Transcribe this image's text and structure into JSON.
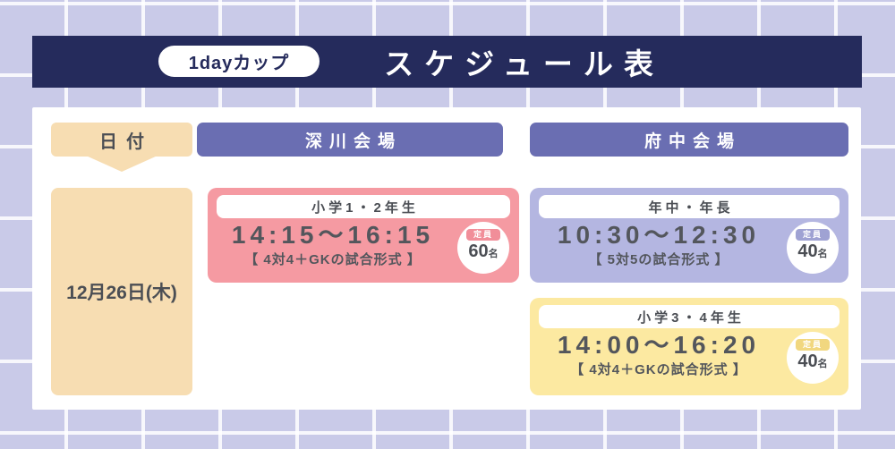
{
  "banner": {
    "badge": "1dayカップ",
    "title": "スケジュール表"
  },
  "headers": {
    "date": "日付",
    "venue1": "深川会場",
    "venue2": "府中会場"
  },
  "date": {
    "value": "12月26日(木)"
  },
  "sessions": [
    {
      "venue": "深川会場",
      "grade": "小学1・2年生",
      "time": "14:15〜16:15",
      "format": "【 4対4＋GKの試合形式 】",
      "capacity_label": "定員",
      "capacity_value": "60",
      "capacity_unit": "名",
      "color": "#f59aa2"
    },
    {
      "venue": "府中会場",
      "grade": "年中・年長",
      "time": "10:30〜12:30",
      "format": "【 5対5の試合形式 】",
      "capacity_label": "定員",
      "capacity_value": "40",
      "capacity_unit": "名",
      "color": "#b4b6e1"
    },
    {
      "venue": "府中会場",
      "grade": "小学3・4年生",
      "time": "14:00〜16:20",
      "format": "【 4対4＋GKの試合形式 】",
      "capacity_label": "定員",
      "capacity_value": "40",
      "capacity_unit": "名",
      "color": "#fce9a1"
    }
  ],
  "colors": {
    "background": "#c9cae8",
    "grid_line": "#ffffff",
    "banner": "#252b5c",
    "card_bg": "#ffffff",
    "venue_header": "#6a6eb2",
    "date_accent": "#f7ddb2",
    "text_dark": "#4b4e54",
    "session_pink": "#f59aa2",
    "session_purple": "#b4b6e1",
    "session_yellow": "#fce9a1",
    "chip_pink": "#f18e99",
    "chip_purple": "#9fa2d3",
    "chip_yellow": "#f1d77f"
  }
}
